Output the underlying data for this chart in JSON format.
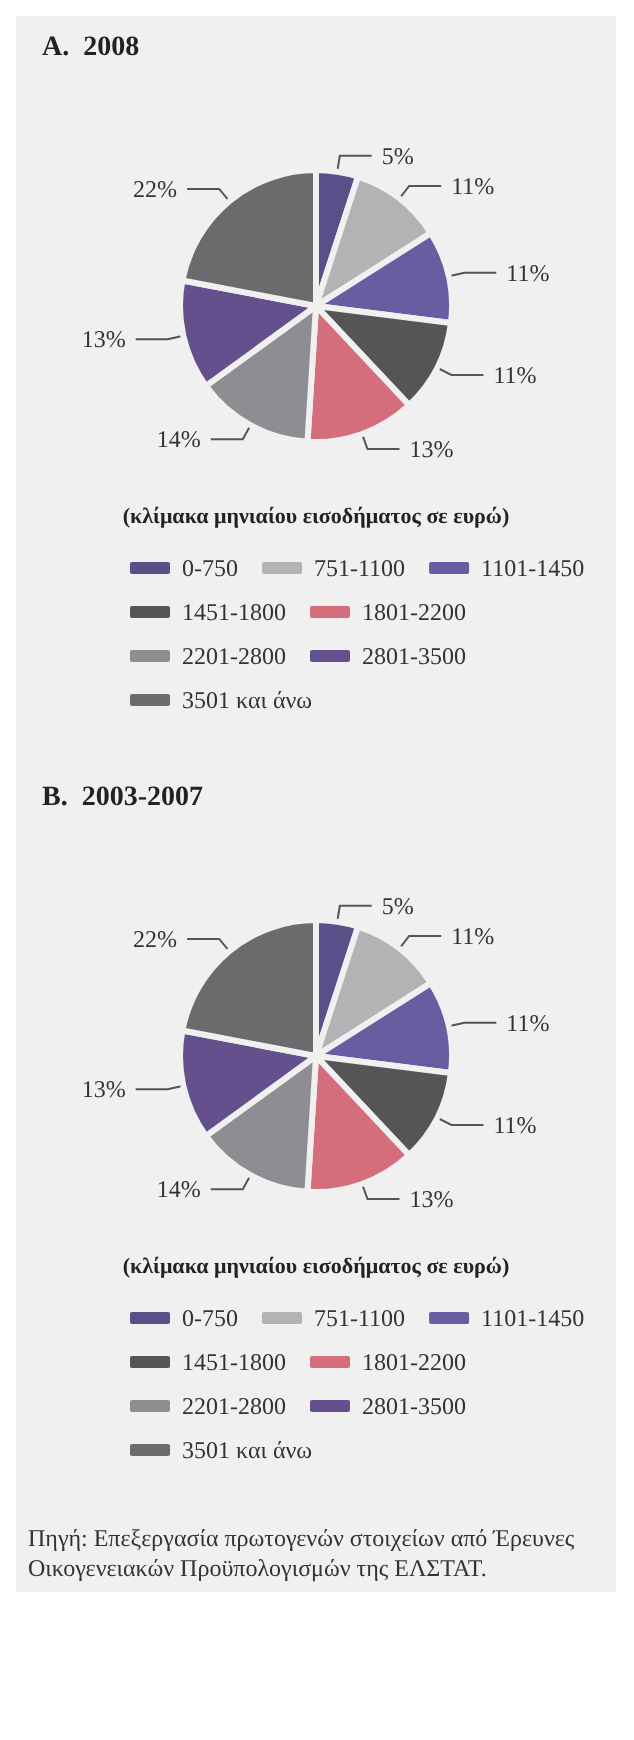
{
  "chart_data": [
    {
      "type": "pie",
      "title": "Α.  2008",
      "legend_title": "(κλίμακα μηνιαίου εισοδήματος σε ευρώ)",
      "legend": "bottom",
      "value_labels": [
        "5%",
        "11%",
        "11%",
        "11%",
        "13%",
        "14%",
        "13%",
        "22%"
      ],
      "categories": [
        "0-750",
        "751-1100",
        "1101-1450",
        "1451-1800",
        "1801-2200",
        "2201-2800",
        "2801-3500",
        "3501 και άνω"
      ],
      "values": [
        5,
        11,
        11,
        11,
        13,
        14,
        13,
        22
      ],
      "colors": [
        "#5b4f8a",
        "#b3b3b5",
        "#6a5ca0",
        "#555558",
        "#d46e7c",
        "#8e8e92",
        "#64508c",
        "#6b6b6e"
      ]
    },
    {
      "type": "pie",
      "title": "Β.  2003-2007",
      "legend_title": "(κλίμακα μηνιαίου εισοδήματος σε ευρώ)",
      "legend": "bottom",
      "value_labels": [
        "5%",
        "11%",
        "11%",
        "11%",
        "13%",
        "14%",
        "13%",
        "22%"
      ],
      "categories": [
        "0-750",
        "751-1100",
        "1101-1450",
        "1451-1800",
        "1801-2200",
        "2201-2800",
        "2801-3500",
        "3501 και άνω"
      ],
      "values": [
        5,
        11,
        11,
        11,
        13,
        14,
        13,
        22
      ],
      "colors": [
        "#5b4f8a",
        "#b3b3b5",
        "#6a5ca0",
        "#555558",
        "#d46e7c",
        "#8e8e92",
        "#64508c",
        "#6b6b6e"
      ],
      "annotations": [
        "Πηγή: Επεξεργασία πρωτογενών στοιχείων από Έρευνες Οικογενειακών Προϋπολογισμών της ΕΛΣΤΑΤ."
      ]
    }
  ]
}
